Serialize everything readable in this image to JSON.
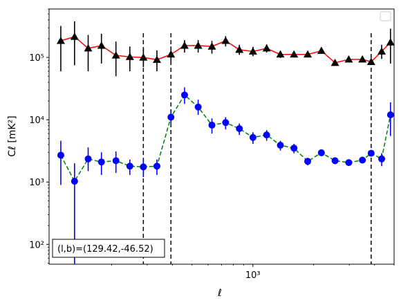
{
  "chart_data": {
    "type": "scatter",
    "xlabel": "ℓ",
    "ylabel": "Cℓ  [mK²]",
    "xscale": "log",
    "yscale": "log",
    "xlim": [
      98,
      5000
    ],
    "ylim": [
      48,
      600000
    ],
    "x_ticks": [
      {
        "value": 1000,
        "label": "10³"
      }
    ],
    "y_ticks": [
      {
        "value": 100,
        "label": "10²"
      },
      {
        "value": 1000,
        "label": "10³"
      },
      {
        "value": 10000,
        "label": "10⁴"
      },
      {
        "value": 100000,
        "label": "10⁵"
      }
    ],
    "vlines": [
      287,
      393,
      3850
    ],
    "legend": "top-right",
    "annotation": "(l,b)=(129.42,-46.52)",
    "colors": {
      "series_upper_line": "#ff0000",
      "series_upper_marker": "#000000",
      "series_lower_line": "#008000",
      "series_lower_marker": "#0000ff"
    },
    "series": [
      {
        "style": "triangle-up-marker-solid-line",
        "points": [
          {
            "x": 112,
            "y": 185000,
            "lo": 60000,
            "hi": 320000
          },
          {
            "x": 131,
            "y": 215000,
            "lo": 75000,
            "hi": 380000
          },
          {
            "x": 153,
            "y": 140000,
            "lo": 60000,
            "hi": 230000
          },
          {
            "x": 178,
            "y": 155000,
            "lo": 80000,
            "hi": 240000
          },
          {
            "x": 210,
            "y": 108000,
            "lo": 50000,
            "hi": 180000
          },
          {
            "x": 246,
            "y": 102000,
            "lo": 60000,
            "hi": 150000
          },
          {
            "x": 287,
            "y": 100000,
            "lo": 70000,
            "hi": 140000
          },
          {
            "x": 335,
            "y": 92000,
            "lo": 60000,
            "hi": 130000
          },
          {
            "x": 393,
            "y": 112000,
            "lo": 80000,
            "hi": 150000
          },
          {
            "x": 459,
            "y": 155000,
            "lo": 120000,
            "hi": 190000
          },
          {
            "x": 536,
            "y": 155000,
            "lo": 120000,
            "hi": 190000
          },
          {
            "x": 627,
            "y": 150000,
            "lo": 115000,
            "hi": 185000
          },
          {
            "x": 733,
            "y": 185000,
            "lo": 150000,
            "hi": 220000
          },
          {
            "x": 857,
            "y": 133000,
            "lo": 110000,
            "hi": 160000
          },
          {
            "x": 1001,
            "y": 125000,
            "lo": 105000,
            "hi": 148000
          },
          {
            "x": 1170,
            "y": 140000,
            "lo": 120000,
            "hi": 162000
          },
          {
            "x": 1368,
            "y": 112000,
            "lo": 98000,
            "hi": 128000
          },
          {
            "x": 1598,
            "y": 112000,
            "lo": 100000,
            "hi": 126000
          },
          {
            "x": 1868,
            "y": 112000,
            "lo": 100000,
            "hi": 125000
          },
          {
            "x": 2183,
            "y": 128000,
            "lo": 115000,
            "hi": 142000
          },
          {
            "x": 2551,
            "y": 82000,
            "lo": 75000,
            "hi": 90000
          },
          {
            "x": 2982,
            "y": 93000,
            "lo": 85000,
            "hi": 102000
          },
          {
            "x": 3485,
            "y": 93000,
            "lo": 86000,
            "hi": 101000
          },
          {
            "x": 3850,
            "y": 85000,
            "lo": 78000,
            "hi": 93000
          },
          {
            "x": 4340,
            "y": 125000,
            "lo": 95000,
            "hi": 160000
          },
          {
            "x": 4800,
            "y": 175000,
            "lo": 80000,
            "hi": 290000
          }
        ]
      },
      {
        "style": "circle-marker-dashed-line",
        "points": [
          {
            "x": 112,
            "y": 2700,
            "lo": 900,
            "hi": 4600
          },
          {
            "x": 131,
            "y": 1030,
            "lo": 48,
            "hi": 2000
          },
          {
            "x": 153,
            "y": 2350,
            "lo": 1500,
            "hi": 3600
          },
          {
            "x": 178,
            "y": 2100,
            "lo": 1300,
            "hi": 3000
          },
          {
            "x": 210,
            "y": 2200,
            "lo": 1400,
            "hi": 3100
          },
          {
            "x": 246,
            "y": 1800,
            "lo": 1300,
            "hi": 2300
          },
          {
            "x": 287,
            "y": 1750,
            "lo": 1200,
            "hi": 2300
          },
          {
            "x": 335,
            "y": 1800,
            "lo": 1300,
            "hi": 2300
          },
          {
            "x": 393,
            "y": 11000,
            "lo": 8000,
            "hi": 14000
          },
          {
            "x": 459,
            "y": 25000,
            "lo": 18000,
            "hi": 33000
          },
          {
            "x": 536,
            "y": 16000,
            "lo": 12000,
            "hi": 21000
          },
          {
            "x": 627,
            "y": 8200,
            "lo": 6000,
            "hi": 10500
          },
          {
            "x": 733,
            "y": 9000,
            "lo": 7000,
            "hi": 11000
          },
          {
            "x": 857,
            "y": 7200,
            "lo": 5700,
            "hi": 8700
          },
          {
            "x": 1001,
            "y": 5200,
            "lo": 4100,
            "hi": 6300
          },
          {
            "x": 1170,
            "y": 5700,
            "lo": 4600,
            "hi": 6800
          },
          {
            "x": 1368,
            "y": 3900,
            "lo": 3200,
            "hi": 4600
          },
          {
            "x": 1598,
            "y": 3500,
            "lo": 2900,
            "hi": 4100
          },
          {
            "x": 1868,
            "y": 2150,
            "lo": 1850,
            "hi": 2450
          },
          {
            "x": 2183,
            "y": 2950,
            "lo": 2600,
            "hi": 3300
          },
          {
            "x": 2551,
            "y": 2200,
            "lo": 2000,
            "hi": 2400
          },
          {
            "x": 2982,
            "y": 2050,
            "lo": 1850,
            "hi": 2250
          },
          {
            "x": 3485,
            "y": 2250,
            "lo": 2050,
            "hi": 2450
          },
          {
            "x": 3850,
            "y": 2900,
            "lo": 2600,
            "hi": 3200
          },
          {
            "x": 4340,
            "y": 2350,
            "lo": 1800,
            "hi": 2900
          },
          {
            "x": 4800,
            "y": 12000,
            "lo": 5500,
            "hi": 19000
          }
        ]
      }
    ]
  }
}
